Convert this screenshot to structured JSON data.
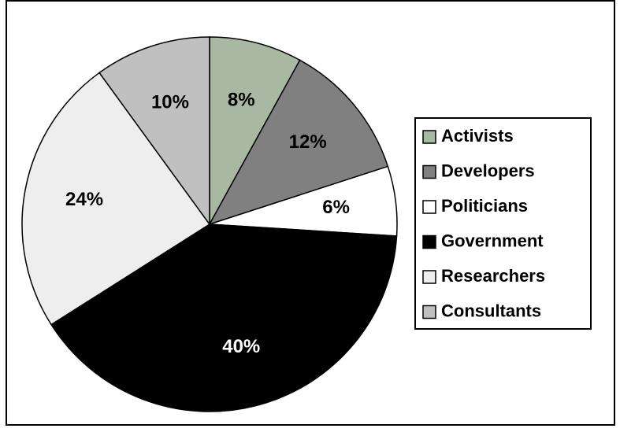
{
  "chart_data": {
    "type": "pie",
    "categories": [
      "Activists",
      "Developers",
      "Politicians",
      "Government",
      "Researchers",
      "Consultants"
    ],
    "values": [
      8,
      12,
      6,
      40,
      24,
      10
    ],
    "value_labels": [
      "8%",
      "12%",
      "6%",
      "40%",
      "24%",
      "10%"
    ],
    "colors": [
      "#a9b8a2",
      "#808080",
      "#ffffff",
      "#000000",
      "#eeeeee",
      "#c0c0c0"
    ],
    "legend": "right"
  }
}
